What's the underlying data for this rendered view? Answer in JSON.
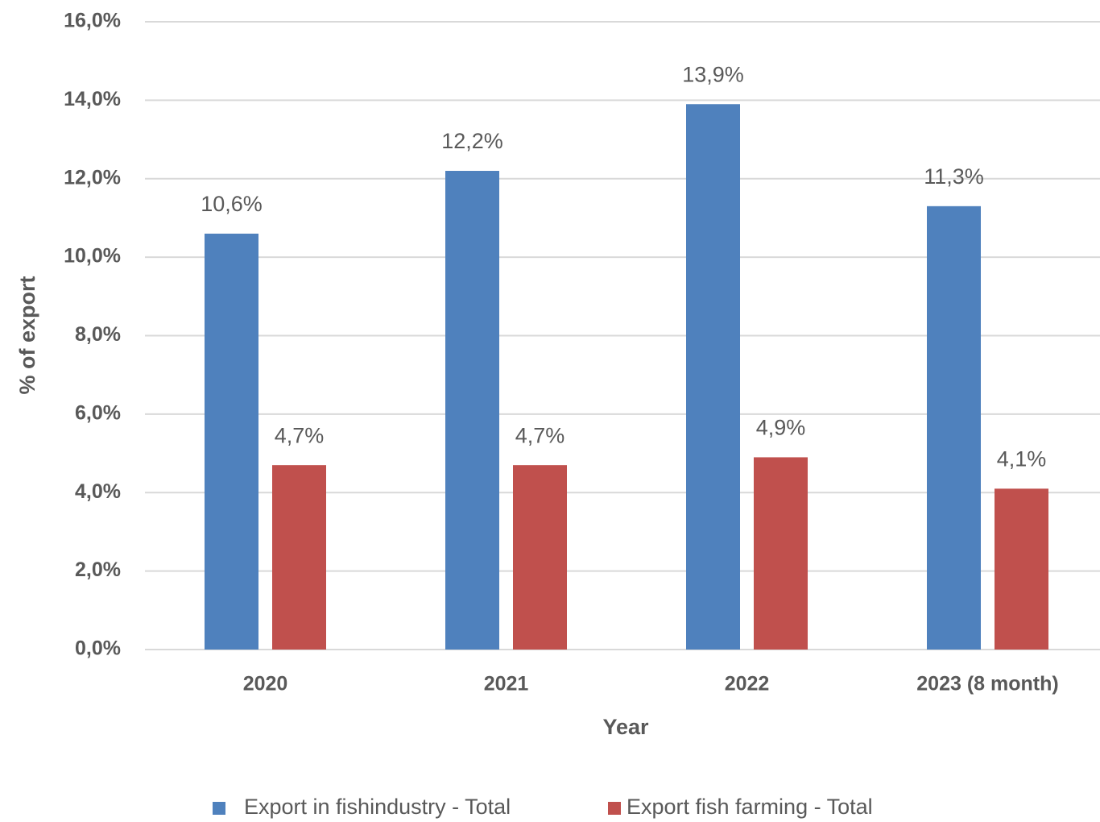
{
  "chart_data": {
    "type": "bar",
    "y_label": "% of  export",
    "x_label": "Year",
    "categories": [
      "2020",
      "2021",
      "2022",
      "2023 (8 month)"
    ],
    "series": [
      {
        "name": "Export in fishindustry - Total",
        "color": "#4f81bd",
        "values": [
          10.6,
          12.2,
          13.9,
          11.3
        ],
        "value_labels": [
          "10,6%",
          "12,2%",
          "13,9%",
          "11,3%"
        ]
      },
      {
        "name": "Export fish farming - Total",
        "color": "#c0504d",
        "values": [
          4.7,
          4.7,
          4.9,
          4.1
        ],
        "value_labels": [
          "4,7%",
          "4,7%",
          "4,9%",
          "4,1%"
        ]
      }
    ],
    "ylim": [
      0,
      16
    ],
    "yticks": [
      {
        "value": 0,
        "label": "0,0%"
      },
      {
        "value": 2,
        "label": "2,0%"
      },
      {
        "value": 4,
        "label": "4,0%"
      },
      {
        "value": 6,
        "label": "6,0%"
      },
      {
        "value": 8,
        "label": "8,0%"
      },
      {
        "value": 10,
        "label": "10,0%"
      },
      {
        "value": 12,
        "label": "12,0%"
      },
      {
        "value": 14,
        "label": "14,0%"
      },
      {
        "value": 16,
        "label": "16,0%"
      }
    ],
    "grid": true,
    "legend": "bottom"
  }
}
